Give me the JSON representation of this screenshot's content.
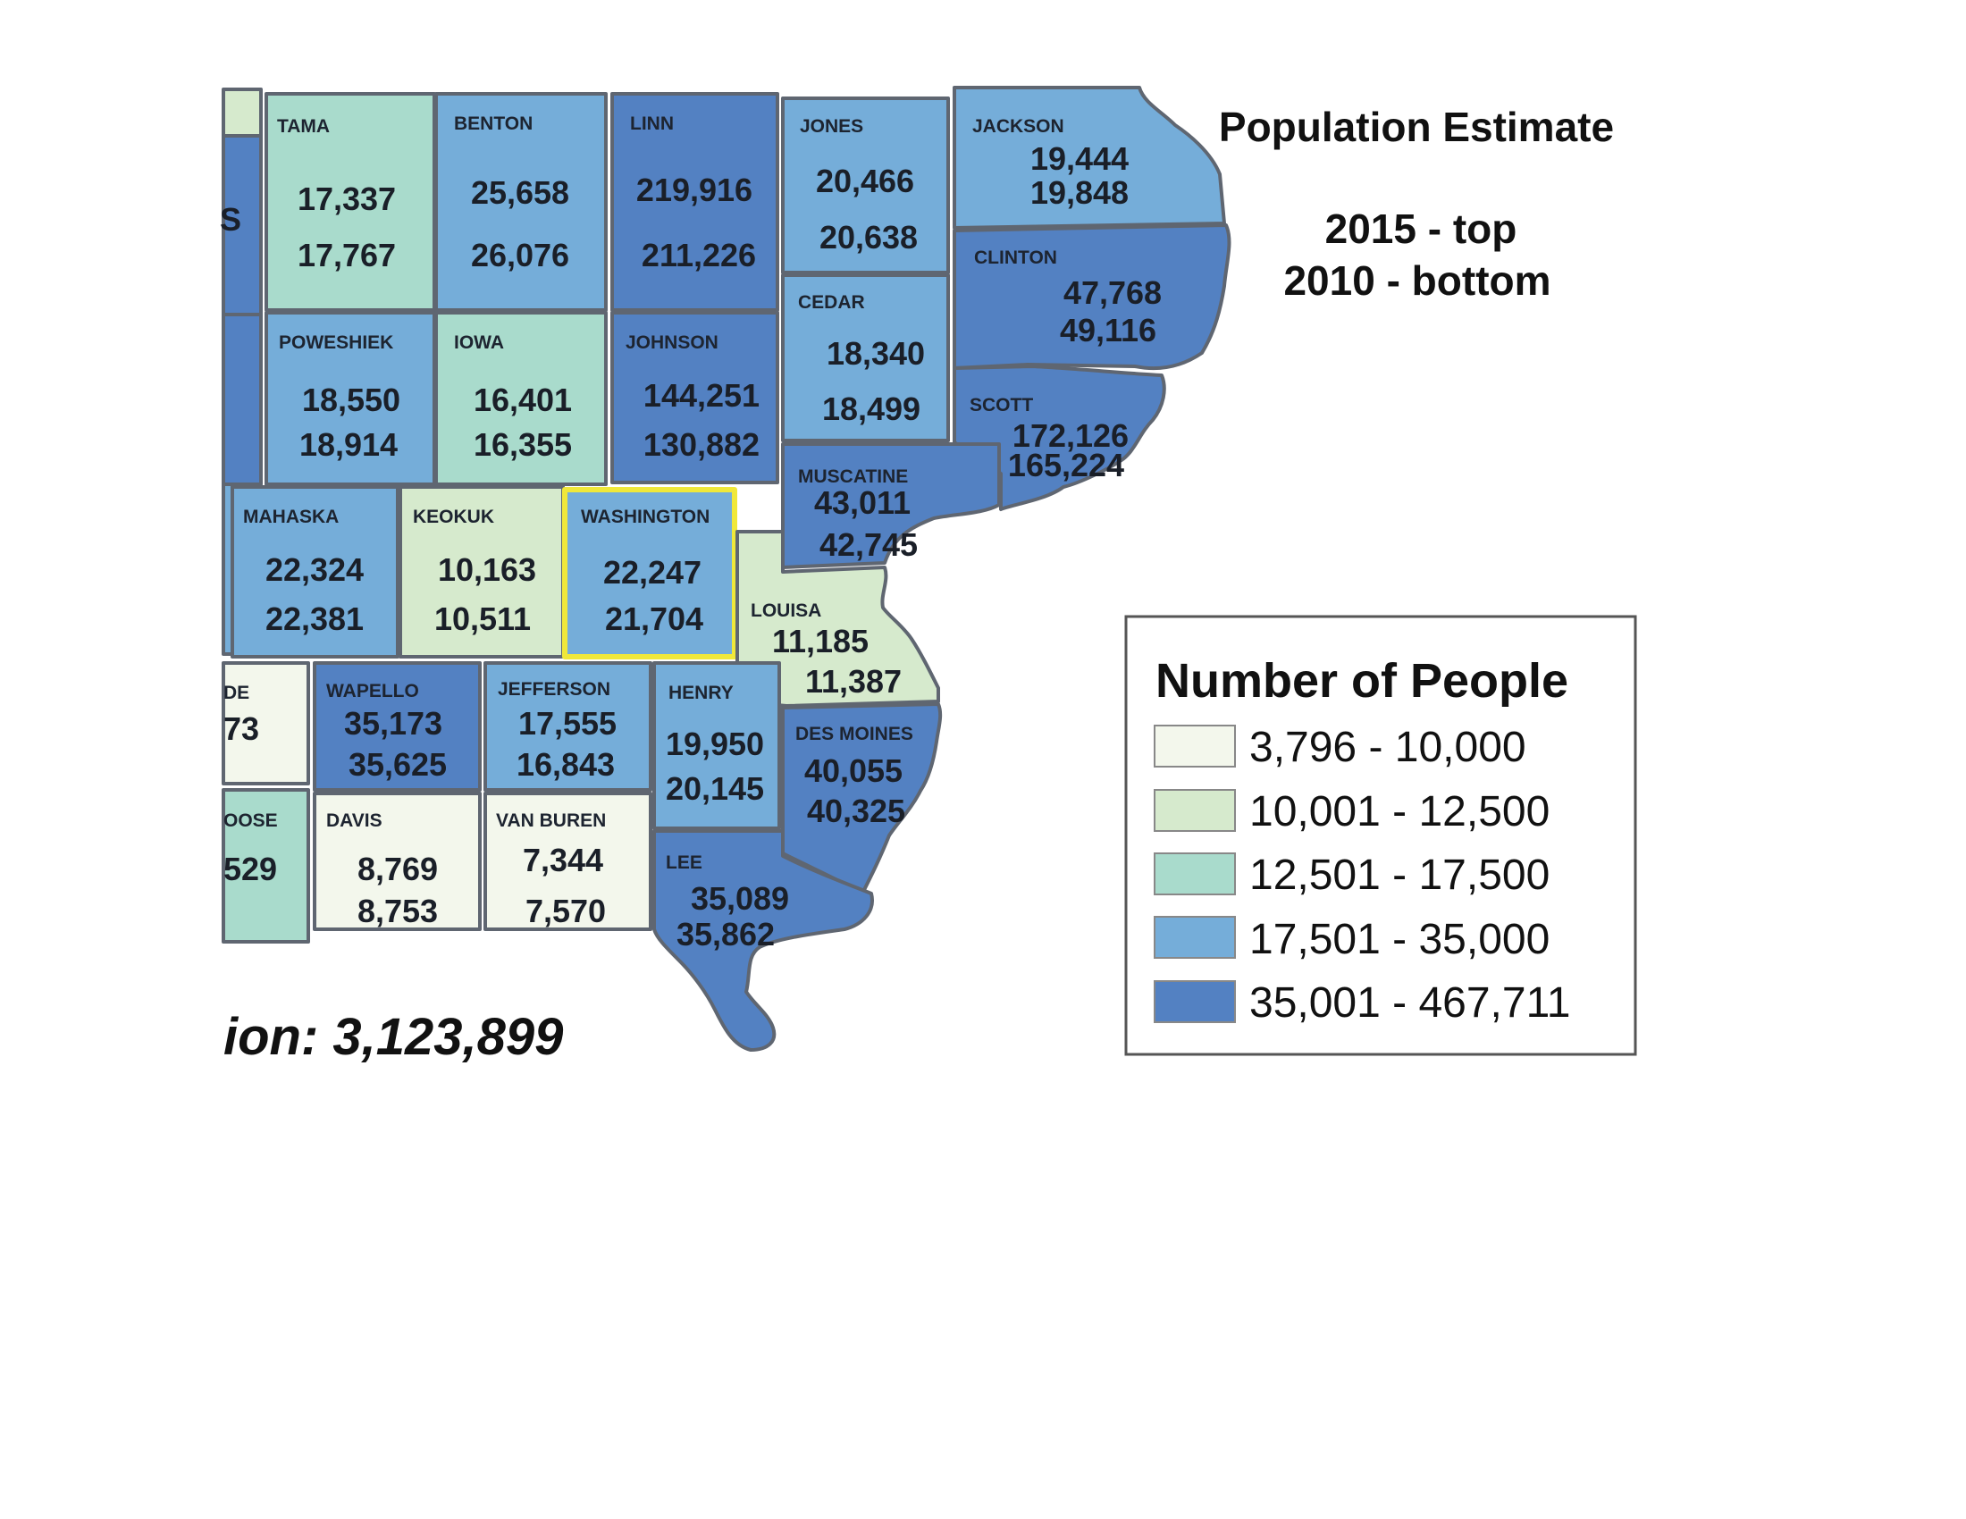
{
  "title": {
    "line1": "Population Estimate",
    "line2": "2015 - top",
    "line3": "2010 - bottom"
  },
  "state_total": "ion: 3,123,899",
  "legend": {
    "title": "Number of People",
    "items": [
      {
        "label": "3,796 - 10,000",
        "color": "#f3f7ec"
      },
      {
        "label": "10,001 - 12,500",
        "color": "#d6eacd"
      },
      {
        "label": "12,501 - 17,500",
        "color": "#a9dbcc"
      },
      {
        "label": "17,501 - 35,000",
        "color": "#75add9"
      },
      {
        "label": "35,001 - 467,711",
        "color": "#5381c2"
      }
    ]
  },
  "counties": {
    "tama": {
      "name": "TAMA",
      "pop2015": "17,337",
      "pop2010": "17,767"
    },
    "benton": {
      "name": "BENTON",
      "pop2015": "25,658",
      "pop2010": "26,076"
    },
    "linn": {
      "name": "LINN",
      "pop2015": "219,916",
      "pop2010": "211,226"
    },
    "jones": {
      "name": "JONES",
      "pop2015": "20,466",
      "pop2010": "20,638"
    },
    "jackson": {
      "name": "JACKSON",
      "pop2015": "19,444",
      "pop2010": "19,848"
    },
    "clinton": {
      "name": "CLINTON",
      "pop2015": "47,768",
      "pop2010": "49,116"
    },
    "cedar": {
      "name": "CEDAR",
      "pop2015": "18,340",
      "pop2010": "18,499"
    },
    "poweshiek": {
      "name": "POWESHIEK",
      "pop2015": "18,550",
      "pop2010": "18,914"
    },
    "iowa": {
      "name": "IOWA",
      "pop2015": "16,401",
      "pop2010": "16,355"
    },
    "johnson": {
      "name": "JOHNSON",
      "pop2015": "144,251",
      "pop2010": "130,882"
    },
    "scott": {
      "name": "SCOTT",
      "pop2015": "172,126",
      "pop2010": "165,224"
    },
    "muscatine": {
      "name": "MUSCATINE",
      "pop2015": "43,011",
      "pop2010": "42,745"
    },
    "mahaska": {
      "name": "MAHASKA",
      "pop2015": "22,324",
      "pop2010": "22,381"
    },
    "keokuk": {
      "name": "KEOKUK",
      "pop2015": "10,163",
      "pop2010": "10,511"
    },
    "washington": {
      "name": "WASHINGTON",
      "pop2015": "22,247",
      "pop2010": "21,704"
    },
    "louisa": {
      "name": "LOUISA",
      "pop2015": "11,185",
      "pop2010": "11,387"
    },
    "wapello": {
      "name": "WAPELLO",
      "pop2015": "35,173",
      "pop2010": "35,625"
    },
    "jefferson": {
      "name": "JEFFERSON",
      "pop2015": "17,555",
      "pop2010": "16,843"
    },
    "henry": {
      "name": "HENRY",
      "pop2015": "19,950",
      "pop2010": "20,145"
    },
    "desmoines": {
      "name": "DES MOINES",
      "pop2015": "40,055",
      "pop2010": "40,325"
    },
    "davis": {
      "name": "DAVIS",
      "pop2015": "8,769",
      "pop2010": "8,753"
    },
    "vanburen": {
      "name": "VAN BUREN",
      "pop2015": "7,344",
      "pop2010": "7,570"
    },
    "lee": {
      "name": "LEE",
      "pop2015": "35,089",
      "pop2010": "35,862"
    }
  },
  "partial_labels": {
    "left_edge_s": "S",
    "appanoose_name": "OOSE",
    "appanoose_num": "529",
    "monroe_name": "DE",
    "monroe_num": "73"
  },
  "highlight_color": "#f0e83a"
}
